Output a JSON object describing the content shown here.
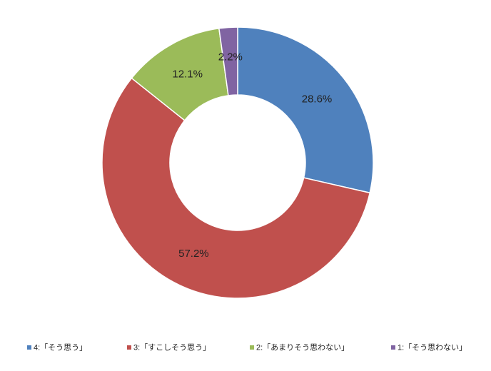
{
  "chart_data": {
    "type": "donut",
    "categories": [
      "4:「そう思う」",
      "3:「すこしそう思う」",
      "2:「あまりそう思わない」",
      "1:「そう思わない」"
    ],
    "values": [
      28.6,
      57.2,
      12.1,
      2.2
    ],
    "value_labels": [
      "28.6%",
      "57.2%",
      "12.1%",
      "2.2%"
    ],
    "colors": [
      "#4f81bd",
      "#c0504d",
      "#9bbb59",
      "#8064a2"
    ],
    "legend": "bottom"
  }
}
